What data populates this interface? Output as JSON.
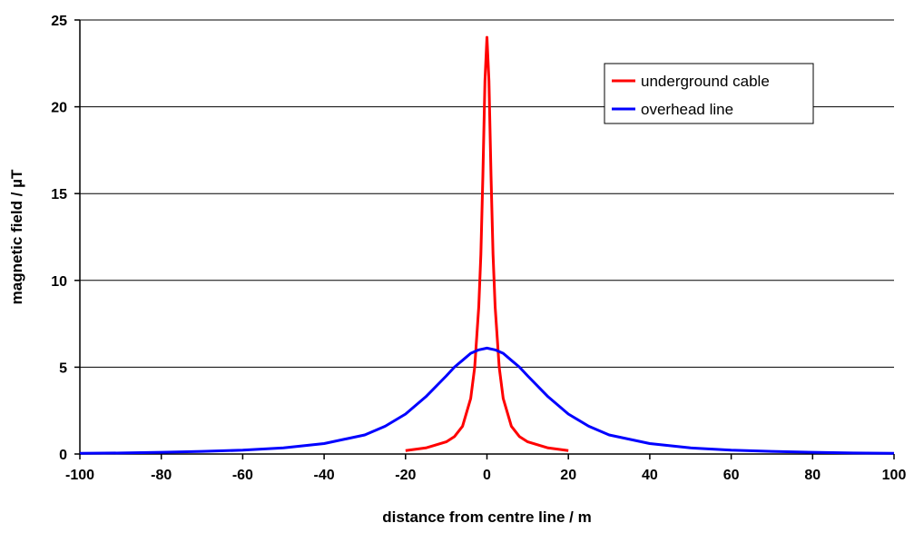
{
  "chart_data": {
    "type": "line",
    "title": "",
    "xlabel": "distance from centre line  /  m",
    "ylabel": "magnetic field  /  µT",
    "xlim": [
      -100,
      100
    ],
    "ylim": [
      0,
      25
    ],
    "x_ticks": [
      -100,
      -80,
      -60,
      -40,
      -20,
      0,
      20,
      40,
      60,
      80,
      100
    ],
    "y_ticks": [
      0,
      5,
      10,
      15,
      20,
      25
    ],
    "grid": "horizontal",
    "legend_position": "top-right",
    "series": [
      {
        "name": "underground cable",
        "color": "#ff0000",
        "x": [
          -20,
          -15,
          -10,
          -8,
          -6,
          -4,
          -3,
          -2,
          -1.5,
          -1,
          -0.5,
          0,
          0.5,
          1,
          1.5,
          2,
          3,
          4,
          6,
          8,
          10,
          15,
          20
        ],
        "y": [
          0.2,
          0.35,
          0.7,
          1.0,
          1.6,
          3.2,
          5.0,
          8.5,
          11.5,
          16.0,
          21.5,
          24.0,
          21.5,
          16.0,
          11.5,
          8.5,
          5.0,
          3.2,
          1.6,
          1.0,
          0.7,
          0.35,
          0.2
        ]
      },
      {
        "name": "overhead line",
        "color": "#0000ff",
        "x": [
          -100,
          -90,
          -80,
          -70,
          -60,
          -50,
          -40,
          -30,
          -25,
          -20,
          -15,
          -10,
          -8,
          -6,
          -4,
          -2,
          0,
          2,
          4,
          6,
          8,
          10,
          15,
          20,
          25,
          30,
          40,
          50,
          60,
          70,
          80,
          90,
          100
        ],
        "y": [
          0.04,
          0.06,
          0.1,
          0.15,
          0.22,
          0.35,
          0.6,
          1.1,
          1.6,
          2.3,
          3.3,
          4.5,
          5.0,
          5.4,
          5.8,
          6.0,
          6.1,
          6.0,
          5.8,
          5.4,
          5.0,
          4.5,
          3.3,
          2.3,
          1.6,
          1.1,
          0.6,
          0.35,
          0.22,
          0.15,
          0.1,
          0.06,
          0.04
        ]
      }
    ]
  }
}
